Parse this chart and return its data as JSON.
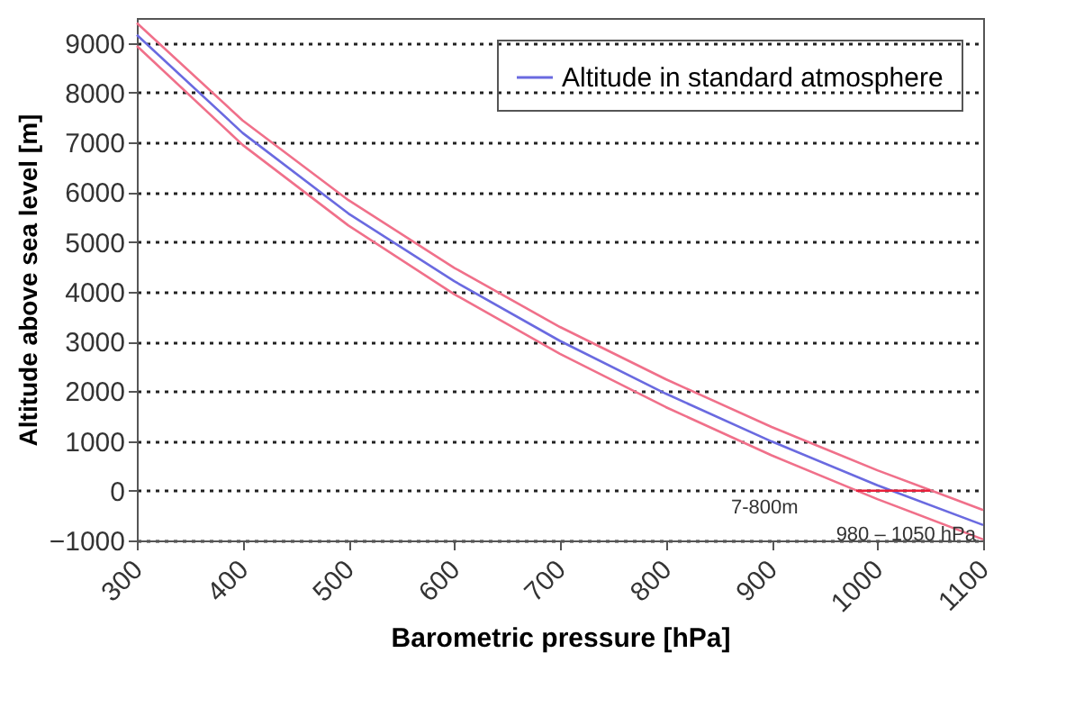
{
  "chart_data": {
    "type": "line",
    "xlabel": "Barometric pressure [hPa]",
    "ylabel": "Altitude above sea level [m]",
    "x": [
      300,
      400,
      500,
      600,
      700,
      800,
      900,
      1000,
      1100
    ],
    "series": [
      {
        "name": "Altitude in standard atmosphere",
        "color": "#6a6ae0",
        "values": [
          9160,
          7190,
          5570,
          4210,
          3010,
          1950,
          990,
          110,
          -690
        ]
      },
      {
        "color": "#f0708a",
        "values": [
          9400,
          7440,
          5840,
          4480,
          3290,
          2240,
          1280,
          410,
          -390
        ]
      },
      {
        "color": "#f0708a",
        "values": [
          8940,
          6950,
          5330,
          3950,
          2750,
          1680,
          710,
          -170,
          -980
        ]
      },
      {
        "color": "#e8203a",
        "x": [
          980,
          1050
        ],
        "values": [
          0,
          0
        ]
      }
    ],
    "annotations": [
      "7-800m",
      "980 – 1050 hPa"
    ],
    "xlim": [
      300,
      1100
    ],
    "xticks": [
      300,
      400,
      500,
      600,
      700,
      800,
      900,
      1000,
      1100
    ],
    "ylim": [
      -1000,
      9500
    ],
    "yticks": [
      -1000,
      0,
      1000,
      2000,
      3000,
      4000,
      5000,
      6000,
      7000,
      8000,
      9000
    ],
    "grid": "y",
    "legend": "top right",
    "line_style": "solid"
  }
}
